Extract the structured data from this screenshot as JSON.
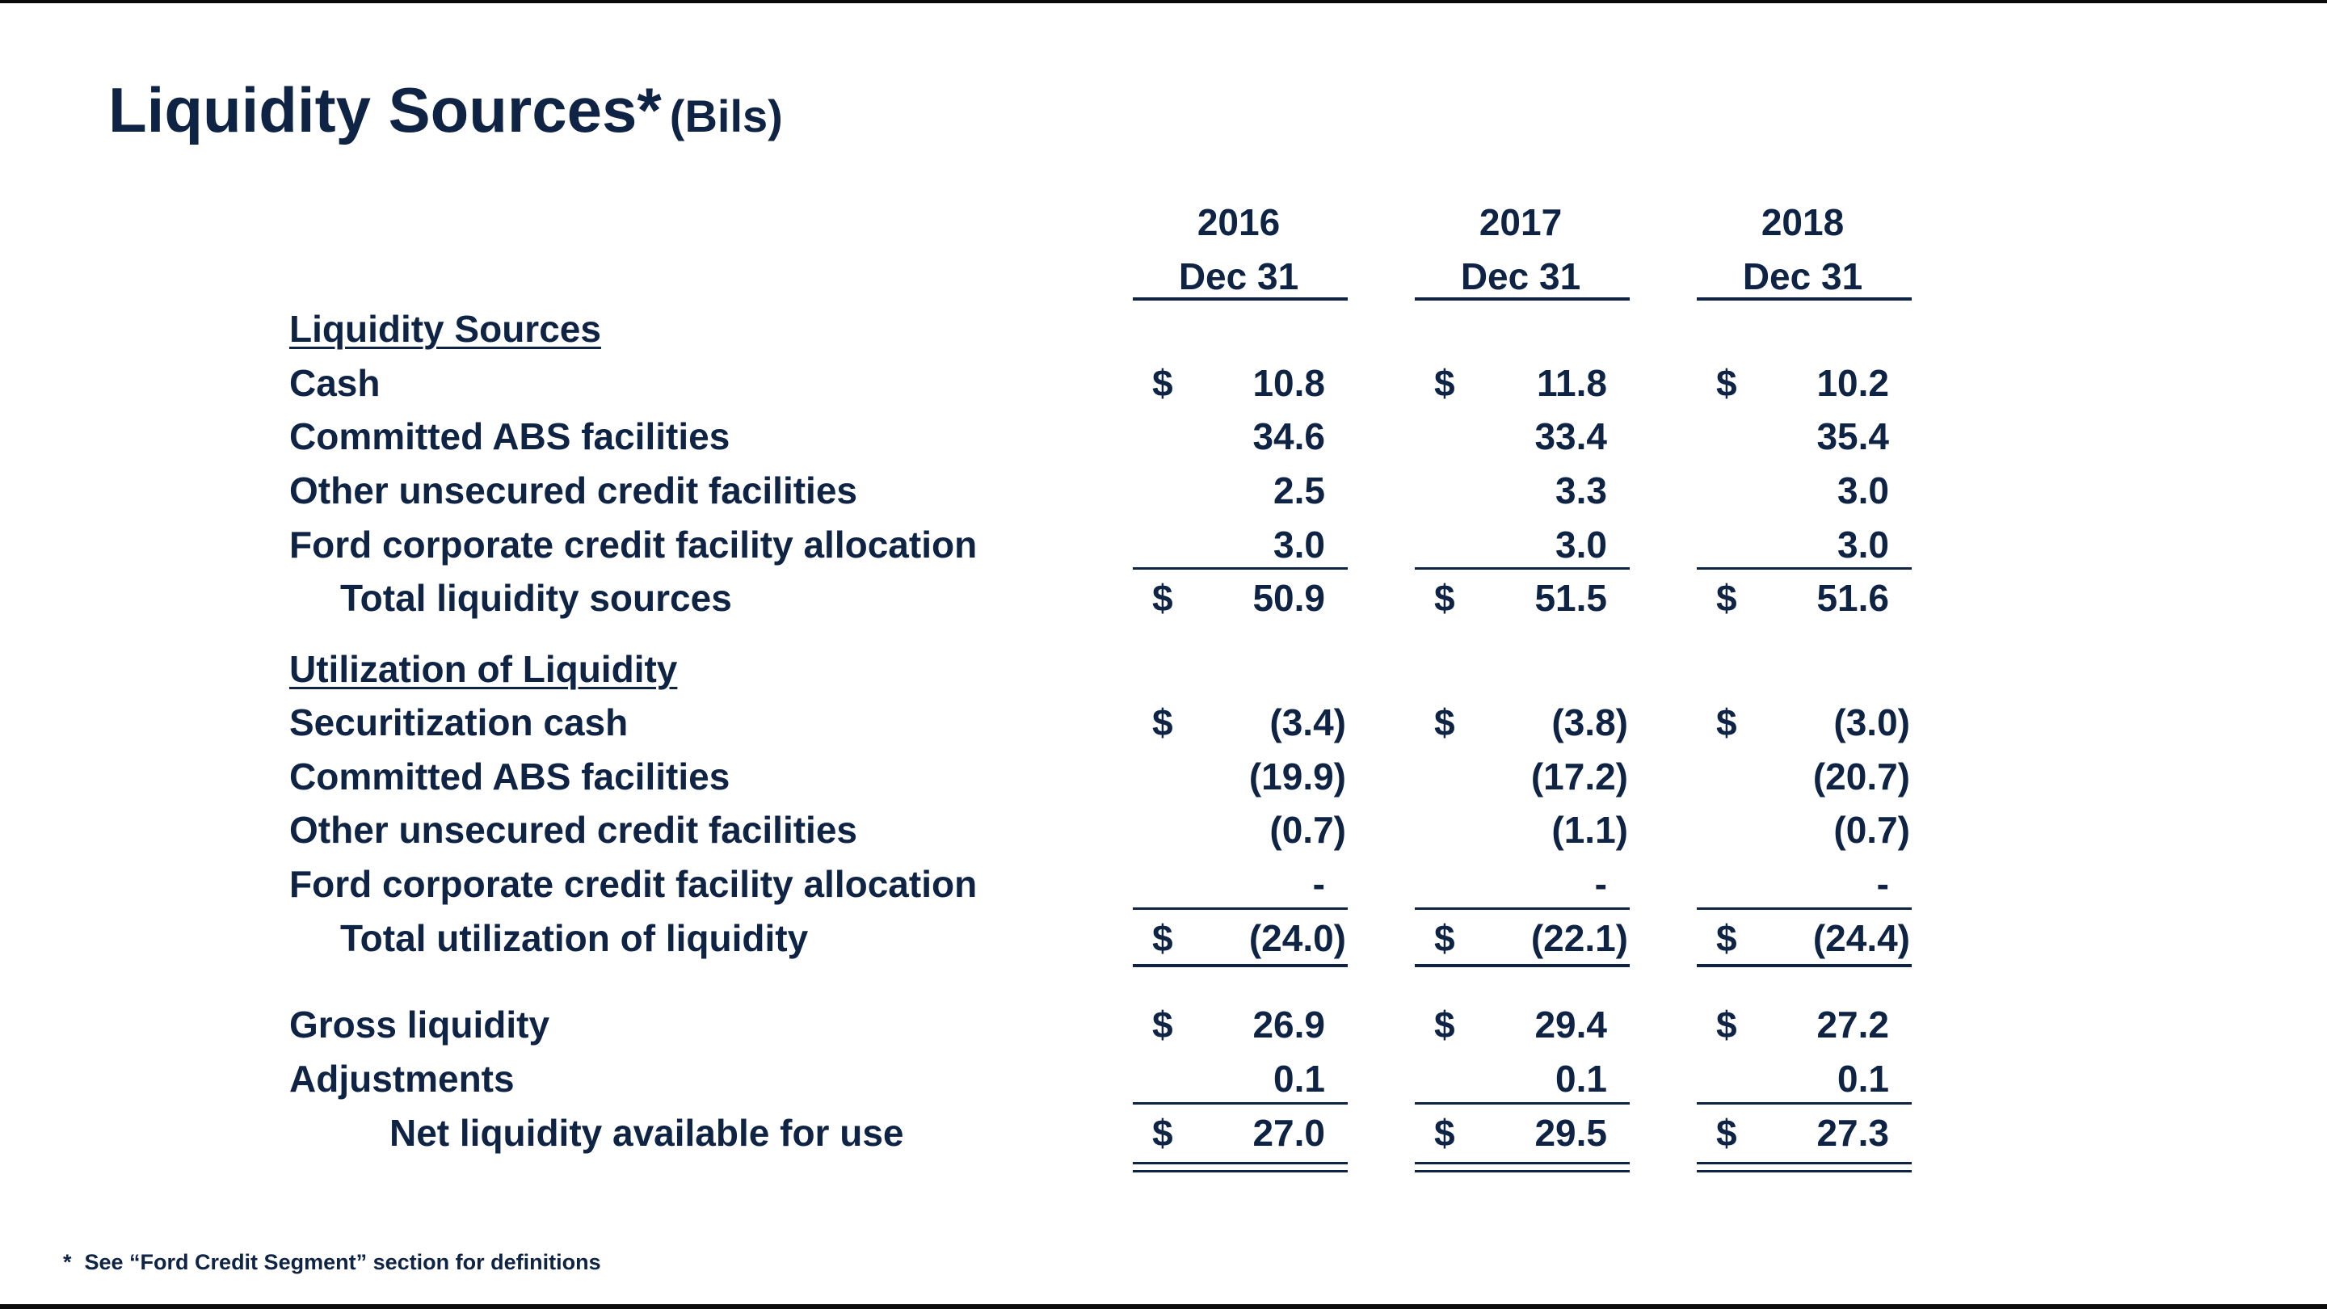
{
  "title": {
    "main": "Liquidity Sources*",
    "unit": "(Bils)"
  },
  "columns": [
    {
      "year": "2016",
      "date": "Dec 31"
    },
    {
      "year": "2017",
      "date": "Dec 31"
    },
    {
      "year": "2018",
      "date": "Dec 31"
    }
  ],
  "sections": [
    {
      "heading": "Liquidity Sources",
      "rows": [
        {
          "label": "Cash",
          "dollar": true,
          "values": [
            "10.8",
            "11.8",
            "10.2"
          ]
        },
        {
          "label": "Committed ABS facilities",
          "dollar": false,
          "values": [
            "34.6",
            "33.4",
            "35.4"
          ]
        },
        {
          "label": "Other unsecured credit facilities",
          "dollar": false,
          "values": [
            "2.5",
            "3.3",
            "3.0"
          ]
        },
        {
          "label": "Ford corporate credit facility allocation",
          "dollar": false,
          "values": [
            "3.0",
            "3.0",
            "3.0"
          ]
        }
      ],
      "total": {
        "label": "Total liquidity sources",
        "dollar": true,
        "values": [
          "50.9",
          "51.5",
          "51.6"
        ]
      }
    },
    {
      "heading": "Utilization of Liquidity",
      "rows": [
        {
          "label": "Securitization cash",
          "dollar": true,
          "values": [
            "(3.4)",
            "(3.8)",
            "(3.0)"
          ]
        },
        {
          "label": "Committed ABS facilities",
          "dollar": false,
          "values": [
            "(19.9)",
            "(17.2)",
            "(20.7)"
          ]
        },
        {
          "label": "Other unsecured credit facilities",
          "dollar": false,
          "values": [
            "(0.7)",
            "(1.1)",
            "(0.7)"
          ]
        },
        {
          "label": "Ford corporate credit facility allocation",
          "dollar": false,
          "values": [
            "-",
            "-",
            "-"
          ]
        }
      ],
      "total": {
        "label": "Total utilization of liquidity",
        "dollar": true,
        "values": [
          "(24.0)",
          "(22.1)",
          "(24.4)"
        ]
      }
    }
  ],
  "summary": {
    "rows": [
      {
        "label": "Gross liquidity",
        "dollar": true,
        "values": [
          "26.9",
          "29.4",
          "27.2"
        ]
      },
      {
        "label": "Adjustments",
        "dollar": false,
        "values": [
          "0.1",
          "0.1",
          "0.1"
        ]
      }
    ],
    "total": {
      "label": "Net liquidity available for use",
      "dollar": true,
      "values": [
        "27.0",
        "29.5",
        "27.3"
      ]
    }
  },
  "currency_symbol": "$",
  "footnote": {
    "marker": "*",
    "text": "See “Ford Credit Segment” section for definitions"
  }
}
